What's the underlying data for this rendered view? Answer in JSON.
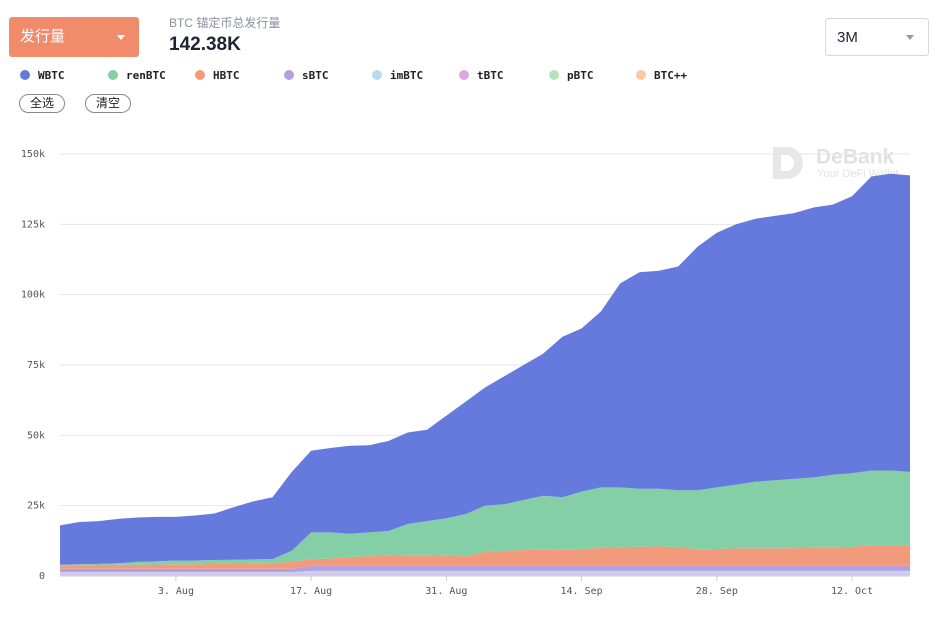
{
  "header": {
    "dropdown": "发行量",
    "subtitle": "BTC 锚定币总发行量",
    "total": "142.38K",
    "range": "3M"
  },
  "buttons": {
    "select_all": "全选",
    "clear": "清空"
  },
  "watermark": {
    "brand": "DeBank",
    "tagline": "Your DeFi Wallet"
  },
  "chart_data": {
    "type": "area",
    "stacked": true,
    "grid": true,
    "categories": [
      null,
      null,
      null,
      null,
      null,
      null,
      "3. Aug",
      null,
      null,
      null,
      null,
      null,
      null,
      "17. Aug",
      null,
      null,
      null,
      null,
      null,
      null,
      "31. Aug",
      null,
      null,
      null,
      null,
      null,
      null,
      "14. Sep",
      null,
      null,
      null,
      null,
      null,
      null,
      "28. Sep",
      null,
      null,
      null,
      null,
      null,
      null,
      "12. Oct",
      null,
      null,
      null
    ],
    "ylim": [
      0,
      150000
    ],
    "yticks": [
      0,
      {
        "value": 25000,
        "label": "25k"
      },
      {
        "value": 50000,
        "label": "50k"
      },
      {
        "value": 75000,
        "label": "75k"
      },
      {
        "value": 100000,
        "label": "100k"
      },
      {
        "value": 125000,
        "label": "125k"
      },
      {
        "value": 150000,
        "label": "150k"
      }
    ],
    "series": [
      {
        "name": "WBTC",
        "color": "#6679dc",
        "values": [
          14000,
          15000,
          15200,
          15800,
          15800,
          15800,
          15500,
          16000,
          16500,
          18700,
          20600,
          22000,
          28000,
          29000,
          30000,
          31300,
          31000,
          32000,
          32500,
          32500,
          36500,
          40000,
          42000,
          45500,
          48000,
          50500,
          57000,
          58000,
          62500,
          72500,
          77000,
          77500,
          79500,
          86500,
          90500,
          92500,
          93500,
          94000,
          94500,
          96000,
          96000,
          98500,
          104500,
          105500,
          105400
        ]
      },
      {
        "name": "renBTC",
        "color": "#84cfa6",
        "values": [
          200,
          400,
          400,
          500,
          1000,
          1100,
          1300,
          1300,
          1400,
          1400,
          1400,
          1400,
          4000,
          9500,
          9300,
          8200,
          8500,
          8800,
          11100,
          12100,
          13300,
          15000,
          16500,
          16500,
          17800,
          19000,
          18700,
          20400,
          21500,
          21300,
          20600,
          20500,
          20200,
          21000,
          21900,
          22700,
          23700,
          24200,
          24600,
          25000,
          26000,
          26200,
          26500,
          26500,
          26000
        ]
      },
      {
        "name": "HBTC",
        "color": "#f29b7c",
        "values": [
          1200,
          1200,
          1300,
          1400,
          1400,
          1500,
          1600,
          1600,
          1700,
          1800,
          1900,
          2000,
          2400,
          2400,
          2600,
          3200,
          3400,
          3600,
          3800,
          3800,
          3600,
          3400,
          4900,
          5400,
          5600,
          5900,
          5700,
          6000,
          6400,
          6600,
          6800,
          6900,
          6700,
          5900,
          6000,
          6200,
          6200,
          6200,
          6300,
          6400,
          6400,
          6700,
          7400,
          7400,
          7400
        ]
      },
      {
        "name": "sBTC",
        "color": "#b5a0dc",
        "values": [
          1200,
          1200,
          1200,
          1200,
          1200,
          1200,
          1200,
          1200,
          1200,
          1200,
          1200,
          1200,
          1200,
          1800,
          1800,
          1800,
          1800,
          1800,
          1800,
          1800,
          1800,
          1800,
          1800,
          1800,
          1800,
          1800,
          1800,
          1800,
          1800,
          1800,
          1800,
          1800,
          1800,
          1800,
          1800,
          1800,
          1800,
          1800,
          1800,
          1800,
          1800,
          1800,
          1800,
          1800,
          1800
        ]
      },
      {
        "name": "imBTC",
        "color": "#bad8f0",
        "values": [
          800,
          800,
          800,
          800,
          800,
          800,
          800,
          800,
          800,
          800,
          800,
          800,
          800,
          1200,
          1200,
          1200,
          1200,
          1200,
          1200,
          1200,
          1200,
          1200,
          1200,
          1200,
          1200,
          1200,
          1200,
          1200,
          1200,
          1200,
          1200,
          1200,
          1200,
          1200,
          1200,
          1200,
          1200,
          1200,
          1200,
          1200,
          1200,
          1200,
          1200,
          1200,
          1200
        ]
      },
      {
        "name": "tBTC",
        "color": "#dca8e2",
        "values": [
          300,
          300,
          300,
          300,
          300,
          300,
          300,
          300,
          300,
          300,
          300,
          300,
          300,
          300,
          300,
          300,
          300,
          300,
          300,
          300,
          300,
          300,
          300,
          300,
          300,
          300,
          300,
          300,
          300,
          300,
          300,
          300,
          300,
          300,
          300,
          300,
          300,
          300,
          300,
          300,
          300,
          300,
          300,
          300,
          300
        ]
      },
      {
        "name": "pBTC",
        "color": "#b8e2bb",
        "values": [
          100,
          100,
          100,
          100,
          100,
          100,
          100,
          100,
          100,
          100,
          100,
          100,
          100,
          100,
          100,
          100,
          100,
          100,
          100,
          100,
          100,
          100,
          100,
          100,
          100,
          100,
          100,
          100,
          100,
          100,
          100,
          100,
          100,
          100,
          100,
          100,
          100,
          100,
          100,
          100,
          100,
          100,
          100,
          100,
          100
        ]
      },
      {
        "name": "BTC++",
        "color": "#f7c8a8",
        "values": [
          200,
          200,
          200,
          200,
          200,
          200,
          200,
          200,
          200,
          200,
          200,
          200,
          200,
          200,
          200,
          200,
          200,
          200,
          200,
          200,
          200,
          200,
          200,
          200,
          200,
          200,
          200,
          200,
          200,
          200,
          200,
          200,
          200,
          200,
          200,
          200,
          200,
          200,
          200,
          200,
          200,
          200,
          200,
          200,
          200
        ]
      }
    ]
  }
}
